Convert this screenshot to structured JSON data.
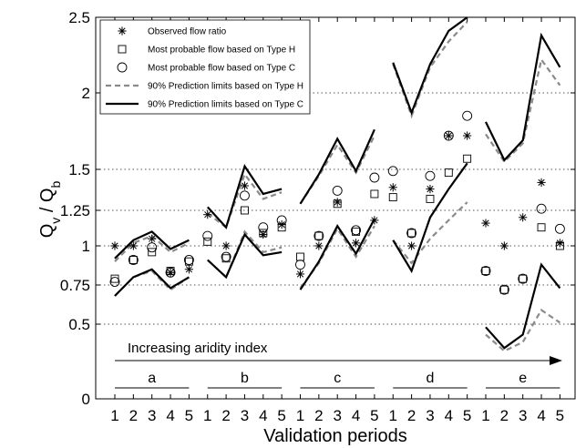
{
  "chart_data": {
    "type": "scatter",
    "title": "",
    "xlabel": "Validation periods",
    "ylabel": {
      "main": "Q",
      "sub1": "v",
      "sep": " / Q",
      "sub2": "b"
    },
    "ylim": [
      0,
      2.5
    ],
    "y_ticks": [
      0,
      0.5,
      0.75,
      1,
      1.25,
      1.5,
      2,
      2.5
    ],
    "y_tick_labels": [
      "0",
      "0.5",
      "0.75",
      "1",
      "1.25",
      "1.5",
      "2",
      "2.5"
    ],
    "dotted_gridlines": [
      0.5,
      0.75,
      1,
      1.25,
      1.5,
      2
    ],
    "x_tick_labels": [
      "1",
      "2",
      "3",
      "4",
      "5",
      "1",
      "2",
      "3",
      "4",
      "5",
      "1",
      "2",
      "3",
      "4",
      "5",
      "1",
      "2",
      "3",
      "4",
      "5",
      "1",
      "2",
      "3",
      "4",
      "5"
    ],
    "groups": [
      "a",
      "b",
      "c",
      "d",
      "e"
    ],
    "legend_position": "top-left",
    "annotation": "Increasing aridity index",
    "series": [
      {
        "name": "Observed flow ratio",
        "marker": "asterisk",
        "values": [
          [
            1.0,
            1.0,
            1.05,
            0.83,
            0.85
          ],
          [
            1.22,
            1.0,
            1.4,
            1.08,
            1.15
          ],
          [
            0.82,
            1.0,
            1.3,
            1.02,
            1.18
          ],
          [
            1.39,
            1.0,
            1.38,
            1.72,
            1.72
          ],
          [
            1.16,
            1.0,
            1.2,
            1.42,
            1.02
          ]
        ]
      },
      {
        "name": "Most probable flow based on Type H",
        "marker": "square",
        "values": [
          [
            0.79,
            0.91,
            0.96,
            0.84,
            0.9
          ],
          [
            1.03,
            0.92,
            1.25,
            1.09,
            1.13
          ],
          [
            0.93,
            1.07,
            1.29,
            1.1,
            1.35
          ],
          [
            1.33,
            1.09,
            1.32,
            1.48,
            1.57
          ],
          [
            0.84,
            0.72,
            0.79,
            1.13,
            1.0
          ]
        ]
      },
      {
        "name": "Most probable flow based on Type C",
        "marker": "circle",
        "values": [
          [
            0.77,
            0.91,
            0.99,
            0.83,
            0.91
          ],
          [
            1.07,
            0.93,
            1.34,
            1.13,
            1.18
          ],
          [
            0.88,
            1.07,
            1.37,
            1.11,
            1.45
          ],
          [
            1.49,
            1.09,
            1.46,
            1.72,
            1.85
          ],
          [
            0.84,
            0.72,
            0.79,
            1.26,
            1.12
          ]
        ]
      },
      {
        "name": "90% Prediction limits based on Type H",
        "style": "dashed",
        "upper": [
          [
            0.9,
            1.02,
            1.07,
            0.96,
            1.02
          ],
          [
            1.23,
            1.13,
            1.47,
            1.32,
            1.36
          ],
          [
            1.29,
            1.46,
            1.66,
            1.48,
            1.72
          ],
          [
            2.19,
            1.85,
            2.17,
            2.34,
            2.47
          ],
          [
            1.73,
            1.55,
            1.67,
            2.22,
            2.05
          ]
        ],
        "lower": [
          [
            0.68,
            0.8,
            0.84,
            0.72,
            0.8
          ],
          [
            0.91,
            0.8,
            1.1,
            0.96,
            0.99
          ],
          [
            0.73,
            0.89,
            1.12,
            0.93,
            1.14
          ],
          [
            1.04,
            0.89,
            1.05,
            1.18,
            1.3
          ],
          [
            0.43,
            0.32,
            0.38,
            0.59,
            0.51
          ]
        ]
      },
      {
        "name": "90% Prediction limits based on Type C",
        "style": "solid",
        "upper": [
          [
            0.92,
            1.04,
            1.1,
            0.98,
            1.04
          ],
          [
            1.27,
            1.13,
            1.52,
            1.35,
            1.38
          ],
          [
            1.29,
            1.47,
            1.7,
            1.49,
            1.76
          ],
          [
            2.2,
            1.87,
            2.19,
            2.41,
            2.5
          ],
          [
            1.81,
            1.56,
            1.69,
            2.38,
            2.17
          ]
        ],
        "lower": [
          [
            0.68,
            0.8,
            0.85,
            0.73,
            0.8
          ],
          [
            0.91,
            0.8,
            1.08,
            0.94,
            0.96
          ],
          [
            0.72,
            0.9,
            1.14,
            0.95,
            1.19
          ],
          [
            1.04,
            0.84,
            1.2,
            1.38,
            1.54
          ],
          [
            0.48,
            0.34,
            0.43,
            0.88,
            0.73
          ]
        ]
      }
    ]
  }
}
